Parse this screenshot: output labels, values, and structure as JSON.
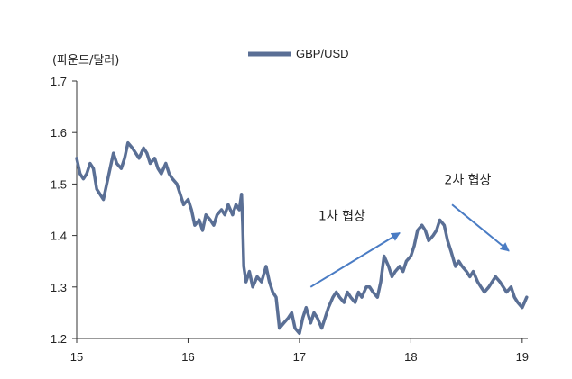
{
  "chart_data": {
    "type": "line",
    "unit_label": "(파운드/달러)",
    "xlabel": "",
    "ylabel": "",
    "x_ticks": [
      "15",
      "16",
      "17",
      "18",
      "19"
    ],
    "y_ticks": [
      "1.2",
      "1.3",
      "1.4",
      "1.5",
      "1.6",
      "1.7"
    ],
    "xlim": [
      15,
      19.05
    ],
    "ylim": [
      1.2,
      1.7
    ],
    "grid": false,
    "legend_position": "top-center",
    "colors": {
      "series": "#5a6f95",
      "arrow": "#4a7cc4",
      "axis": "#333333"
    },
    "series": [
      {
        "name": "GBP/USD",
        "x": [
          15.0,
          15.03,
          15.06,
          15.09,
          15.12,
          15.15,
          15.18,
          15.21,
          15.24,
          15.27,
          15.3,
          15.33,
          15.36,
          15.4,
          15.43,
          15.46,
          15.5,
          15.53,
          15.56,
          15.6,
          15.63,
          15.66,
          15.7,
          15.73,
          15.76,
          15.8,
          15.83,
          15.86,
          15.9,
          15.93,
          15.96,
          16.0,
          16.03,
          16.06,
          16.1,
          16.13,
          16.16,
          16.2,
          16.23,
          16.26,
          16.3,
          16.33,
          16.36,
          16.4,
          16.43,
          16.46,
          16.48,
          16.49,
          16.5,
          16.52,
          16.55,
          16.58,
          16.62,
          16.66,
          16.7,
          16.73,
          16.76,
          16.79,
          16.82,
          16.86,
          16.9,
          16.93,
          16.96,
          17.0,
          17.03,
          17.06,
          17.1,
          17.13,
          17.16,
          17.2,
          17.23,
          17.26,
          17.3,
          17.33,
          17.36,
          17.4,
          17.43,
          17.46,
          17.5,
          17.53,
          17.56,
          17.6,
          17.63,
          17.66,
          17.7,
          17.73,
          17.76,
          17.8,
          17.83,
          17.86,
          17.9,
          17.93,
          17.96,
          18.0,
          18.03,
          18.06,
          18.1,
          18.13,
          18.16,
          18.2,
          18.23,
          18.26,
          18.3,
          18.33,
          18.36,
          18.4,
          18.43,
          18.46,
          18.5,
          18.53,
          18.56,
          18.6,
          18.63,
          18.66,
          18.7,
          18.73,
          18.76,
          18.8,
          18.83,
          18.86,
          18.9,
          18.93,
          18.96,
          19.0,
          19.02,
          19.04
        ],
        "values": [
          1.55,
          1.52,
          1.51,
          1.52,
          1.54,
          1.53,
          1.49,
          1.48,
          1.47,
          1.5,
          1.53,
          1.56,
          1.54,
          1.53,
          1.55,
          1.58,
          1.57,
          1.56,
          1.55,
          1.57,
          1.56,
          1.54,
          1.55,
          1.53,
          1.52,
          1.54,
          1.52,
          1.51,
          1.5,
          1.48,
          1.46,
          1.47,
          1.45,
          1.42,
          1.43,
          1.41,
          1.44,
          1.43,
          1.42,
          1.44,
          1.45,
          1.44,
          1.46,
          1.44,
          1.46,
          1.45,
          1.48,
          1.42,
          1.34,
          1.31,
          1.33,
          1.3,
          1.32,
          1.31,
          1.34,
          1.31,
          1.29,
          1.28,
          1.22,
          1.23,
          1.24,
          1.25,
          1.22,
          1.21,
          1.24,
          1.26,
          1.23,
          1.25,
          1.24,
          1.22,
          1.24,
          1.26,
          1.28,
          1.29,
          1.28,
          1.27,
          1.29,
          1.28,
          1.27,
          1.29,
          1.28,
          1.3,
          1.3,
          1.29,
          1.28,
          1.31,
          1.36,
          1.34,
          1.32,
          1.33,
          1.34,
          1.33,
          1.35,
          1.36,
          1.38,
          1.41,
          1.42,
          1.41,
          1.39,
          1.4,
          1.41,
          1.43,
          1.42,
          1.39,
          1.37,
          1.34,
          1.35,
          1.34,
          1.33,
          1.32,
          1.33,
          1.31,
          1.3,
          1.29,
          1.3,
          1.31,
          1.32,
          1.31,
          1.3,
          1.29,
          1.3,
          1.28,
          1.27,
          1.26,
          1.27,
          1.28
        ]
      }
    ],
    "annotations": [
      {
        "text": "1차 협상",
        "arrow_from": [
          17.1,
          1.3
        ],
        "arrow_to": [
          17.9,
          1.405
        ],
        "text_at": [
          17.17,
          1.43
        ]
      },
      {
        "text": "2차 협상",
        "arrow_from": [
          18.37,
          1.46
        ],
        "arrow_to": [
          18.88,
          1.37
        ],
        "text_at": [
          18.3,
          1.5
        ]
      }
    ]
  }
}
